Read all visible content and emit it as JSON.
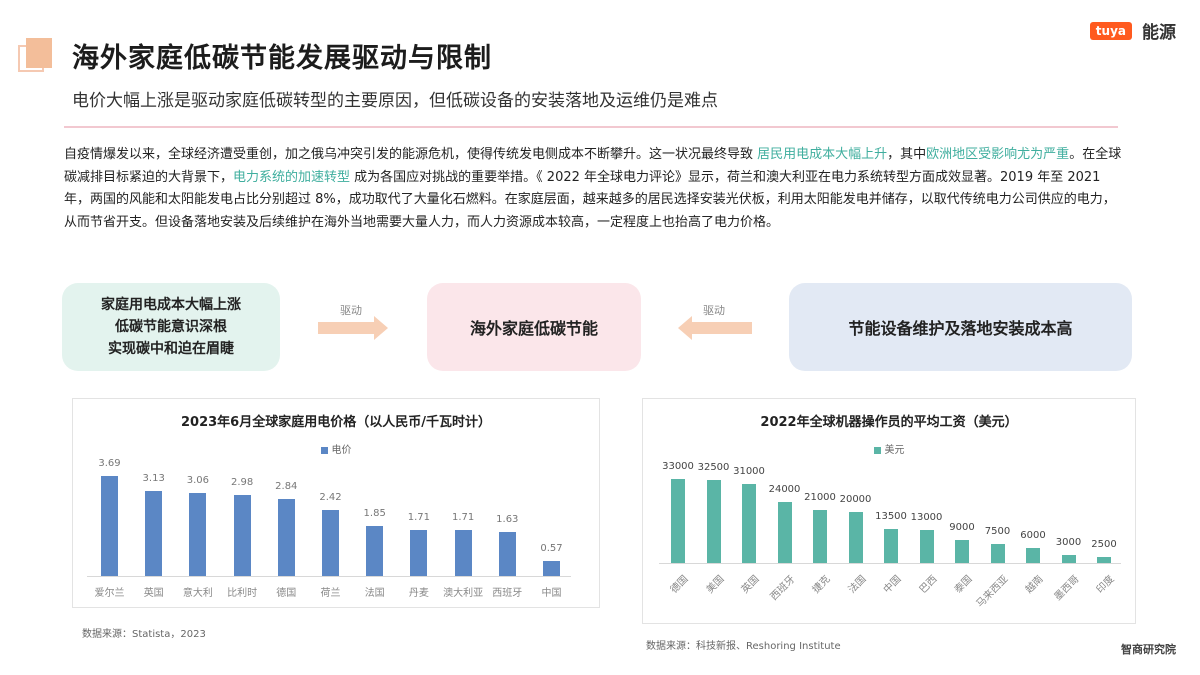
{
  "header": {
    "title": "海外家庭低碳节能发展驱动与限制",
    "subtitle": "电价大幅上涨是驱动家庭低碳转型的主要原因，但低碳设备的安装落地及运维仍是难点",
    "logos": {
      "tuya": "tuya",
      "partner": "能源"
    }
  },
  "body": {
    "segments": [
      {
        "text": "自疫情爆发以来，全球经济遭受重创，加之俄乌冲突引发的能源危机，使得传统发电侧成本不断攀升。这一状况最终导致 ",
        "highlight": false
      },
      {
        "text": "居民用电成本大幅上升",
        "highlight": true
      },
      {
        "text": "，其中",
        "highlight": false
      },
      {
        "text": "欧洲地区受影响尤为严重",
        "highlight": true
      },
      {
        "text": "。在全球碳减排目标紧迫的大背景下，",
        "highlight": false
      },
      {
        "text": "电力系统的加速转型",
        "highlight": true
      },
      {
        "text": " 成为各国应对挑战的重要举措。《 2022 年全球电力评论》显示，荷兰和澳大利亚在电力系统转型方面成效显著。2019 年至 2021年，两国的风能和太阳能发电占比分别超过 8%，成功取代了大量化石燃料。在家庭层面，越来越多的居民选择安装光伏板，利用太阳能发电并储存，以取代传统电力公司供应的电力，从而节省开支。但设备落地安装及后续维护在海外当地需要大量人力，而人力资源成本较高，一定程度上也抬高了电力价格。",
        "highlight": false
      }
    ]
  },
  "flow": {
    "left_box": [
      "家庭用电成本大幅上涨",
      "低碳节能意识深根",
      "实现碳中和迫在眉睫"
    ],
    "left_arrow_label": "驱动",
    "center_box": "海外家庭低碳节能",
    "right_arrow_label": "驱动",
    "right_box": "节能设备维护及落地安装成本高"
  },
  "colors": {
    "accent_orange": "#f3be9a",
    "highlight_teal": "#3fae9e",
    "bar_blue": "#5b87c5",
    "bar_teal": "#5ab5a6"
  },
  "chart_data": [
    {
      "type": "bar",
      "title": "2023年6月全球家庭用电价格（以人民币/千瓦时计）",
      "legend": "电价",
      "categories": [
        "爱尔兰",
        "英国",
        "意大利",
        "比利时",
        "德国",
        "荷兰",
        "法国",
        "丹麦",
        "澳大利亚",
        "西班牙",
        "中国"
      ],
      "values": [
        3.69,
        3.13,
        3.06,
        2.98,
        2.84,
        2.42,
        1.85,
        1.71,
        1.71,
        1.63,
        0.57
      ],
      "value_labels": [
        "3.69",
        "3.13",
        "3.06",
        "2.98",
        "2.84",
        "2.42",
        "1.85",
        "1.71",
        "1.71",
        "1.63",
        "0.57"
      ],
      "xlabel": "",
      "ylabel": "",
      "ylim": [
        0,
        4
      ],
      "grid": false,
      "legend_position": "top",
      "source": "数据来源：Statista，2023"
    },
    {
      "type": "bar",
      "title": "2022年全球机器操作员的平均工资（美元）",
      "legend": "美元",
      "categories": [
        "德国",
        "美国",
        "英国",
        "西班牙",
        "捷克",
        "法国",
        "中国",
        "巴西",
        "泰国",
        "马来西亚",
        "越南",
        "墨西哥",
        "印度"
      ],
      "values": [
        33000,
        32500,
        31000,
        24000,
        21000,
        20000,
        13500,
        13000,
        9000,
        7500,
        6000,
        3000,
        2500
      ],
      "value_labels": [
        "33000",
        "32500",
        "31000",
        "24000",
        "21000",
        "20000",
        "13500",
        "13000",
        "9000",
        "7500",
        "6000",
        "3000",
        "2500"
      ],
      "xlabel": "",
      "ylabel": "",
      "ylim": [
        0,
        35000
      ],
      "grid": false,
      "legend_position": "top",
      "source": "数据来源：科技新报、Reshoring Institute"
    }
  ],
  "footer": {
    "brand": "智商研究院"
  }
}
